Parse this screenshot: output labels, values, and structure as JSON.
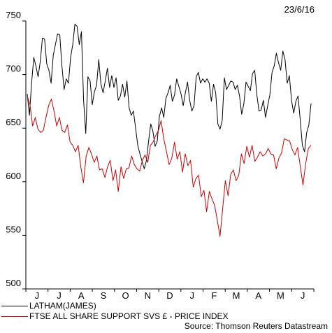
{
  "chart_data": {
    "type": "line",
    "date_label": "23/6/16",
    "source": "Source: Thomson Reuters Datastream",
    "ylim": [
      500,
      750
    ],
    "y_ticks": [
      500,
      550,
      600,
      650,
      700,
      750
    ],
    "x_ticks": [
      "J",
      "J",
      "A",
      "S",
      "O",
      "N",
      "D",
      "J",
      "F",
      "M",
      "A",
      "M",
      "J"
    ],
    "series": [
      {
        "name": "LATHAM(JAMES)",
        "color": "#000000",
        "values": [
          682,
          662,
          692,
          716,
          708,
          698,
          712,
          734,
          733,
          710,
          704,
          692,
          718,
          728,
          738,
          737,
          708,
          686,
          696,
          692,
          716,
          728,
          747,
          745,
          728,
          740,
          676,
          645,
          698,
          694,
          672,
          684,
          690,
          714,
          691,
          683,
          694,
          706,
          688,
          699,
          688,
          697,
          676,
          680,
          691,
          679,
          694,
          669,
          662,
          666,
          650,
          634,
          626,
          619,
          612,
          620,
          638,
          654,
          647,
          633,
          638,
          661,
          669,
          660,
          678,
          683,
          690,
          675,
          681,
          696,
          689,
          682,
          671,
          683,
          693,
          676,
          666,
          671,
          698,
          702,
          692,
          696,
          693,
          696,
          692,
          675,
          691,
          683,
          654,
          649,
          657,
          697,
          686,
          690,
          694,
          693,
          686,
          690,
          680,
          663,
          673,
          693,
          689,
          685,
          701,
          704,
          681,
          666,
          667,
          676,
          660,
          671,
          681,
          702,
          708,
          720,
          711,
          704,
          722,
          714,
          692,
          699,
          676,
          664,
          675,
          680,
          658,
          634,
          628,
          646,
          653,
          673
        ],
        "note": "values sampled left to right across the date range"
      },
      {
        "name": "FTSE ALL SHARE SUPPORT SVS £ - PRICE INDEX",
        "color": "#cc0000",
        "values": [
          680,
          672,
          652,
          660,
          649,
          646,
          648,
          660,
          671,
          677,
          666,
          652,
          660,
          648,
          646,
          653,
          637,
          634,
          628,
          634,
          614,
          599,
          624,
          632,
          626,
          618,
          624,
          611,
          612,
          604,
          614,
          620,
          601,
          611,
          591,
          614,
          603,
          612,
          613,
          624,
          616,
          612,
          610,
          620,
          625,
          618,
          634,
          637,
          643,
          648,
          657,
          640,
          628,
          616,
          622,
          637,
          621,
          628,
          609,
          626,
          615,
          620,
          595,
          603,
          606,
          586,
          592,
          572,
          591,
          584,
          578,
          564,
          549,
          575,
          601,
          587,
          607,
          611,
          601,
          606,
          626,
          617,
          633,
          623,
          634,
          619,
          623,
          628,
          624,
          626,
          631,
          626,
          625,
          612,
          622,
          627,
          640,
          639,
          638,
          630,
          625,
          632,
          614,
          597,
          617,
          631,
          634
        ]
      }
    ]
  }
}
